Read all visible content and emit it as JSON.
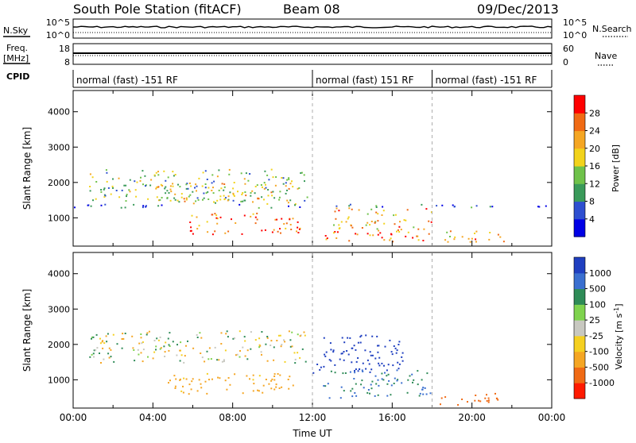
{
  "header": {
    "title": "South Pole Station (fitACF)",
    "beam": "Beam 08",
    "date": "09/Dec/2013"
  },
  "top_panels": {
    "nsky_label": "N.Sky",
    "nsearch_label": "N.Search",
    "freq_label_1": "Freq.",
    "freq_label_2": "[MHz]",
    "nave_label": "Nave",
    "cpid_label": "CPID",
    "noise_ticks": [
      "10^5",
      "10^0"
    ],
    "noise_ticks_right": [
      "10^5",
      "10^0"
    ],
    "freq_ticks": [
      "18",
      "8"
    ],
    "nave_ticks": [
      "60",
      "0"
    ]
  },
  "cpid": {
    "segments": [
      {
        "label": "normal (fast) -151 RF",
        "start": 0,
        "end": 12
      },
      {
        "label": "normal (fast) 151 RF",
        "start": 12,
        "end": 18
      },
      {
        "label": "normal (fast) -151 RF",
        "start": 18,
        "end": 24
      }
    ]
  },
  "chart_data": [
    {
      "type": "heatmap",
      "panel": "power",
      "ylabel": "Slant Range [km]",
      "y_ticks": [
        1000,
        2000,
        3000,
        4000
      ],
      "ylim": [
        200,
        4600
      ],
      "xlim": [
        0,
        24
      ],
      "colorbar": {
        "label": "Power [dB]",
        "ticks": [
          "4",
          "8",
          "12",
          "16",
          "20",
          "24",
          "28"
        ],
        "colors": [
          "#0000e6",
          "#2e4fd0",
          "#3a9a5a",
          "#6fc24a",
          "#f2d31b",
          "#f5a623",
          "#f06a14",
          "#ff0000"
        ]
      },
      "echo_bands": [
        {
          "x": [
            0.8,
            11.8
          ],
          "y": [
            1500,
            2400
          ],
          "level": 3
        },
        {
          "x": [
            4,
            11.2
          ],
          "y": [
            1400,
            2000
          ],
          "level": 4
        },
        {
          "x": [
            5.8,
            11.5
          ],
          "y": [
            550,
            1150
          ],
          "level": 6
        },
        {
          "x": [
            12,
            18
          ],
          "y": [
            350,
            700
          ],
          "level": 6
        },
        {
          "x": [
            13,
            18
          ],
          "y": [
            700,
            1300
          ],
          "level": 5
        },
        {
          "x": [
            18.2,
            21.6
          ],
          "y": [
            300,
            650
          ],
          "level": 5
        },
        {
          "x": [
            0,
            24
          ],
          "y": [
            1300,
            1400
          ],
          "level": 1
        }
      ]
    },
    {
      "type": "heatmap",
      "panel": "velocity",
      "ylabel": "Slant Range [km]",
      "y_ticks": [
        1000,
        2000,
        3000,
        4000
      ],
      "ylim": [
        200,
        4600
      ],
      "xlim": [
        0,
        24
      ],
      "xlabel": "Time UT",
      "x_ticks": [
        "00:00",
        "04:00",
        "08:00",
        "12:00",
        "16:00",
        "20:00",
        "00:00"
      ],
      "colorbar": {
        "label": "Velocity [m s",
        "label_sup": "-1",
        "ticks": [
          "1000",
          "500",
          "100",
          "25",
          "-25",
          "-100",
          "-500",
          "-1000"
        ],
        "colors": [
          "#1f3fc0",
          "#3a6fd0",
          "#2e8b57",
          "#7fd34e",
          "#c8c8c0",
          "#f5d020",
          "#f5a623",
          "#f06a14",
          "#ff1a00"
        ]
      },
      "echo_bands": [
        {
          "x": [
            0.8,
            11.8
          ],
          "y": [
            1500,
            2400
          ],
          "v": 0
        },
        {
          "x": [
            12,
            16.5
          ],
          "y": [
            1200,
            2300
          ],
          "v": 900
        },
        {
          "x": [
            12.5,
            18
          ],
          "y": [
            500,
            1300
          ],
          "v": 300
        },
        {
          "x": [
            18.2,
            21.6
          ],
          "y": [
            300,
            650
          ],
          "v": -400
        },
        {
          "x": [
            4.5,
            11
          ],
          "y": [
            600,
            1200
          ],
          "v": -150
        }
      ]
    }
  ]
}
